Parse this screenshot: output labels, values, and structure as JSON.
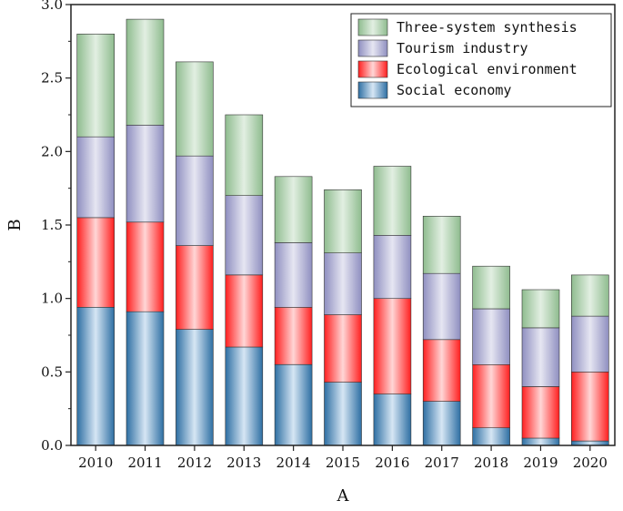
{
  "chart_data": {
    "type": "bar",
    "stacked": true,
    "title": "",
    "xlabel": "A",
    "ylabel": "B",
    "ylim": [
      0,
      3.0
    ],
    "yticks": [
      0.0,
      0.5,
      1.0,
      1.5,
      2.0,
      2.5,
      3.0
    ],
    "ytick_labels": [
      "0.0",
      "0.5",
      "1.0",
      "1.5",
      "2.0",
      "2.5",
      "3.0"
    ],
    "categories": [
      "2010",
      "2011",
      "2012",
      "2013",
      "2014",
      "2015",
      "2016",
      "2017",
      "2018",
      "2019",
      "2020"
    ],
    "series": [
      {
        "name": "Social economy",
        "values": [
          0.94,
          0.91,
          0.79,
          0.67,
          0.55,
          0.43,
          0.35,
          0.3,
          0.12,
          0.05,
          0.03
        ]
      },
      {
        "name": "Ecological environment",
        "values": [
          0.61,
          0.61,
          0.57,
          0.49,
          0.39,
          0.46,
          0.65,
          0.42,
          0.43,
          0.35,
          0.47
        ]
      },
      {
        "name": "Tourism industry",
        "values": [
          0.55,
          0.66,
          0.61,
          0.54,
          0.44,
          0.42,
          0.43,
          0.45,
          0.38,
          0.4,
          0.38
        ]
      },
      {
        "name": "Three-system synthesis",
        "values": [
          0.7,
          0.72,
          0.64,
          0.55,
          0.45,
          0.43,
          0.47,
          0.39,
          0.29,
          0.26,
          0.28
        ]
      }
    ],
    "legend_position": "top-right",
    "colors": {
      "Social economy": [
        "#2e6fa3",
        "#d6e6f4"
      ],
      "Ecological environment": [
        "#ff1f1f",
        "#ffd6d6"
      ],
      "Tourism industry": [
        "#8f8fc0",
        "#e6e6f2"
      ],
      "Three-system synthesis": [
        "#8fbc8f",
        "#e2efe2"
      ]
    }
  }
}
